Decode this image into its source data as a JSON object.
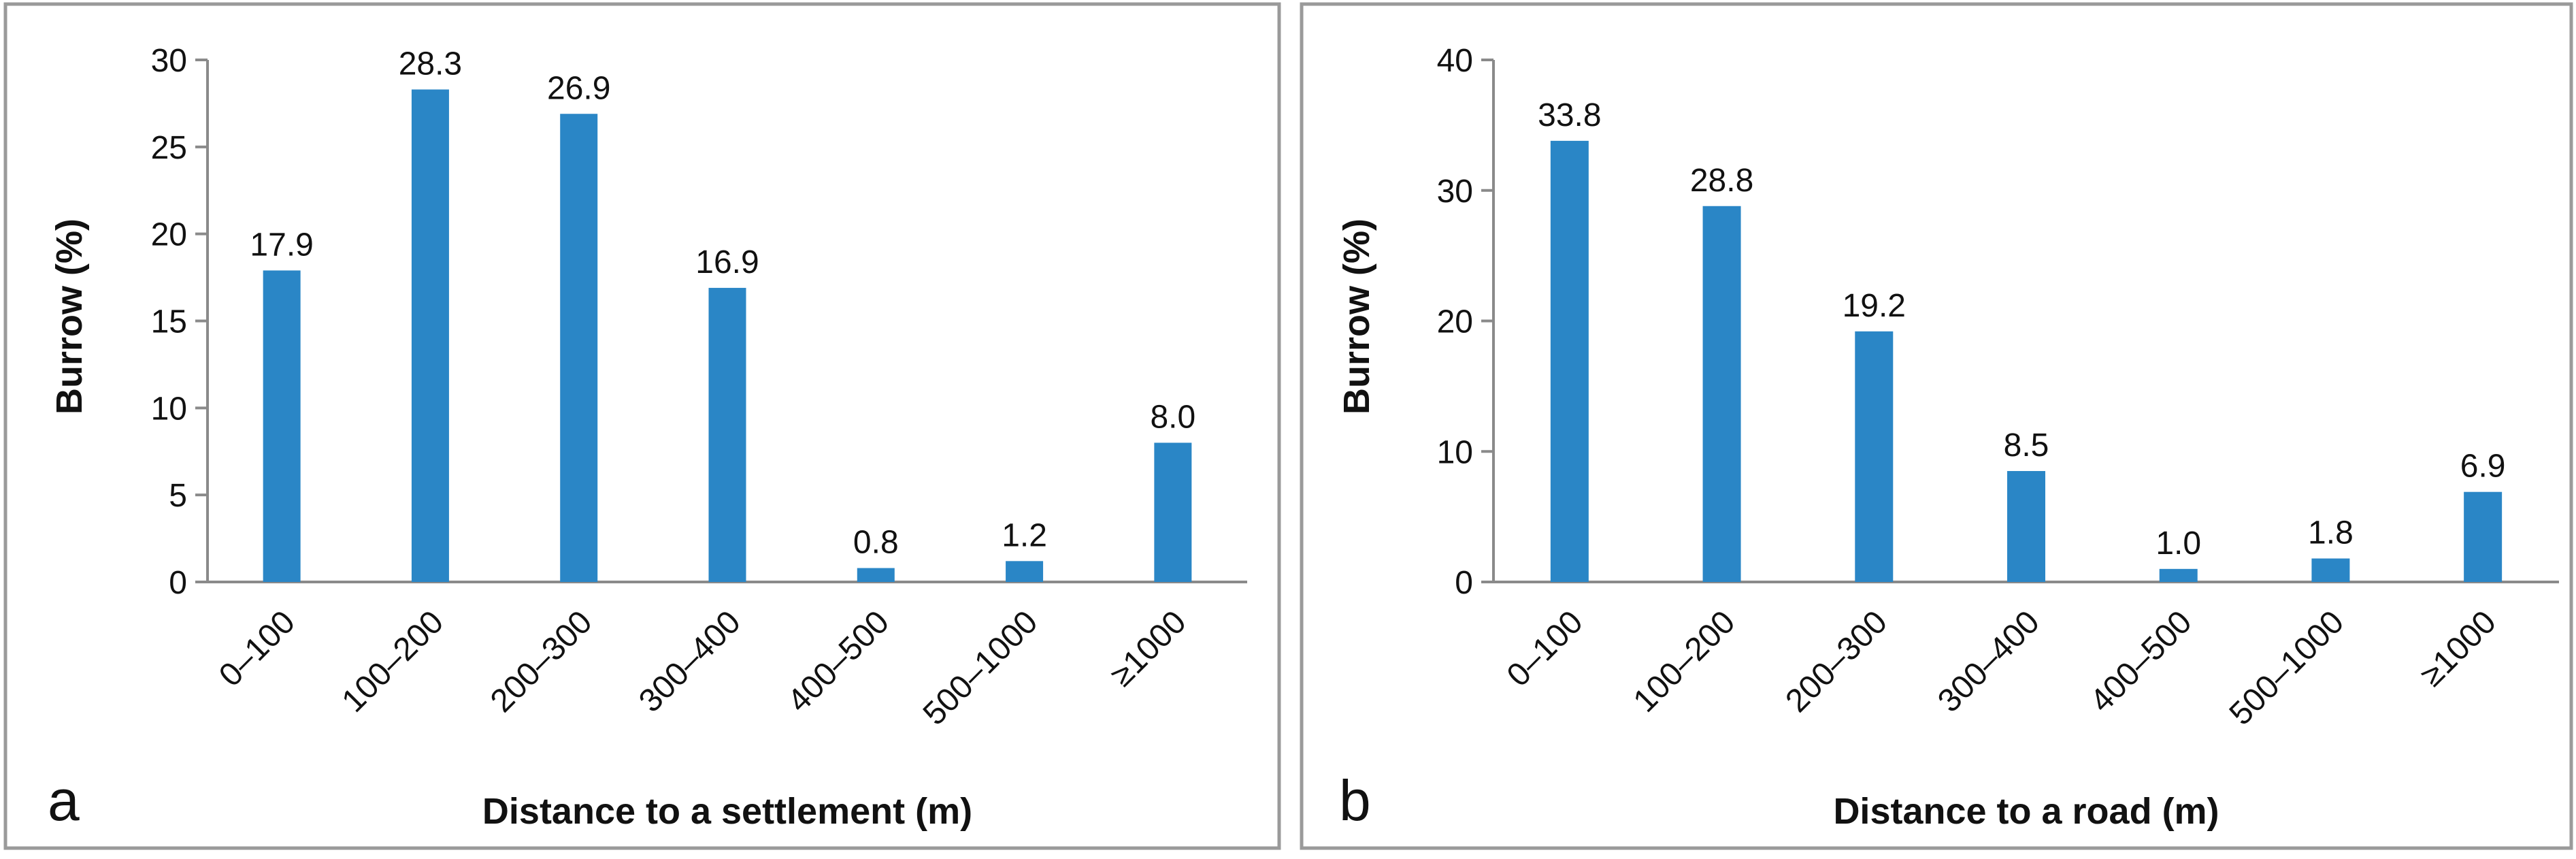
{
  "colors": {
    "bar": "#2a86c6",
    "axis": "#8a8a8a",
    "frame": "#9a9a9a"
  },
  "chart_data": [
    {
      "type": "bar",
      "panel_label": "a",
      "categories": [
        "0–100",
        "100–200",
        "200–300",
        "300–400",
        "400–500",
        "500–1000",
        "≥1000"
      ],
      "values": [
        17.9,
        28.3,
        26.9,
        16.9,
        0.8,
        1.2,
        8.0
      ],
      "data_labels": [
        "17.9",
        "28.3",
        "26.9",
        "16.9",
        "0.8",
        "1.2",
        "8.0"
      ],
      "xlabel": "Distance to a settlement (m)",
      "ylabel": "Burrow (%)",
      "ylim": [
        0,
        30
      ],
      "yticks": [
        "0",
        "5",
        "10",
        "15",
        "20",
        "25",
        "30"
      ]
    },
    {
      "type": "bar",
      "panel_label": "b",
      "categories": [
        "0–100",
        "100–200",
        "200–300",
        "300–400",
        "400–500",
        "500–1000",
        "≥1000"
      ],
      "values": [
        33.8,
        28.8,
        19.2,
        8.5,
        1.0,
        1.8,
        6.9
      ],
      "data_labels": [
        "33.8",
        "28.8",
        "19.2",
        "8.5",
        "1.0",
        "1.8",
        "6.9"
      ],
      "xlabel": "Distance to a road (m)",
      "ylabel": "Burrow (%)",
      "ylim": [
        0,
        40
      ],
      "yticks": [
        "0",
        "10",
        "20",
        "30",
        "40"
      ]
    }
  ]
}
